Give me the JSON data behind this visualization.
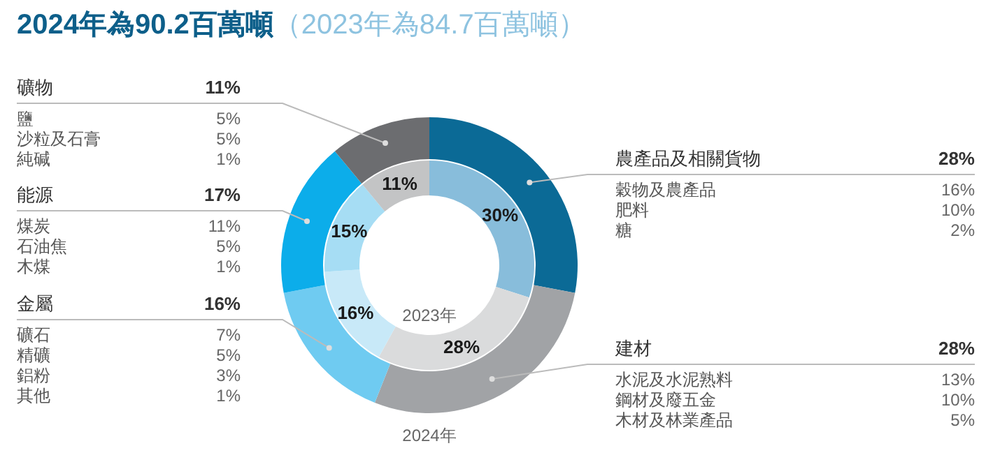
{
  "chart_data": [
    {
      "type": "donut",
      "title": "2024年為90.2百萬噸",
      "subtitle": "（2023年為84.7百萬噸）",
      "categories": [
        "農產品及相關貨物",
        "建材",
        "金屬",
        "能源",
        "礦物"
      ],
      "series": [
        {
          "name": "2024年",
          "colors": [
            "#0b6a96",
            "#a1a3a6",
            "#6fcbf1",
            "#0cadea",
            "#6c6d70"
          ],
          "values": [
            28,
            28,
            16,
            17,
            11
          ],
          "value_labels": [
            "28%",
            "28%",
            "16%",
            "17%",
            "11%"
          ]
        },
        {
          "name": "2023年",
          "colors": [
            "#88bddb",
            "#dadbdc",
            "#c8e9f8",
            "#a6ddf4",
            "#c3c4c5"
          ],
          "values": [
            30,
            28,
            16,
            15,
            11
          ],
          "value_labels": [
            "30%",
            "28%",
            "16%",
            "15%",
            "11%"
          ]
        }
      ]
    },
    {
      "type": "other",
      "categories": [
        "穀物及農產品",
        "肥料",
        "糖"
      ],
      "values": [
        16,
        10,
        2
      ],
      "value_labels": [
        "16%",
        "10%",
        "2%"
      ]
    },
    {
      "type": "other",
      "categories": [
        "水泥及水泥熟料",
        "鋼材及廢五金",
        "木材及林業產品"
      ],
      "values": [
        13,
        10,
        5
      ],
      "value_labels": [
        "13%",
        "10%",
        "5%"
      ]
    },
    {
      "type": "other",
      "categories": [
        "礦石",
        "精礦",
        "鋁粉",
        "其他"
      ],
      "values": [
        7,
        5,
        3,
        1
      ],
      "value_labels": [
        "7%",
        "5%",
        "3%",
        "1%"
      ]
    },
    {
      "type": "other",
      "categories": [
        "煤炭",
        "石油焦",
        "木煤"
      ],
      "values": [
        11,
        5,
        1
      ],
      "value_labels": [
        "11%",
        "5%",
        "1%"
      ]
    },
    {
      "type": "other",
      "categories": [
        "鹽",
        "沙粒及石膏",
        "純碱"
      ],
      "values": [
        5,
        5,
        1
      ],
      "value_labels": [
        "5%",
        "5%",
        "1%"
      ]
    }
  ]
}
